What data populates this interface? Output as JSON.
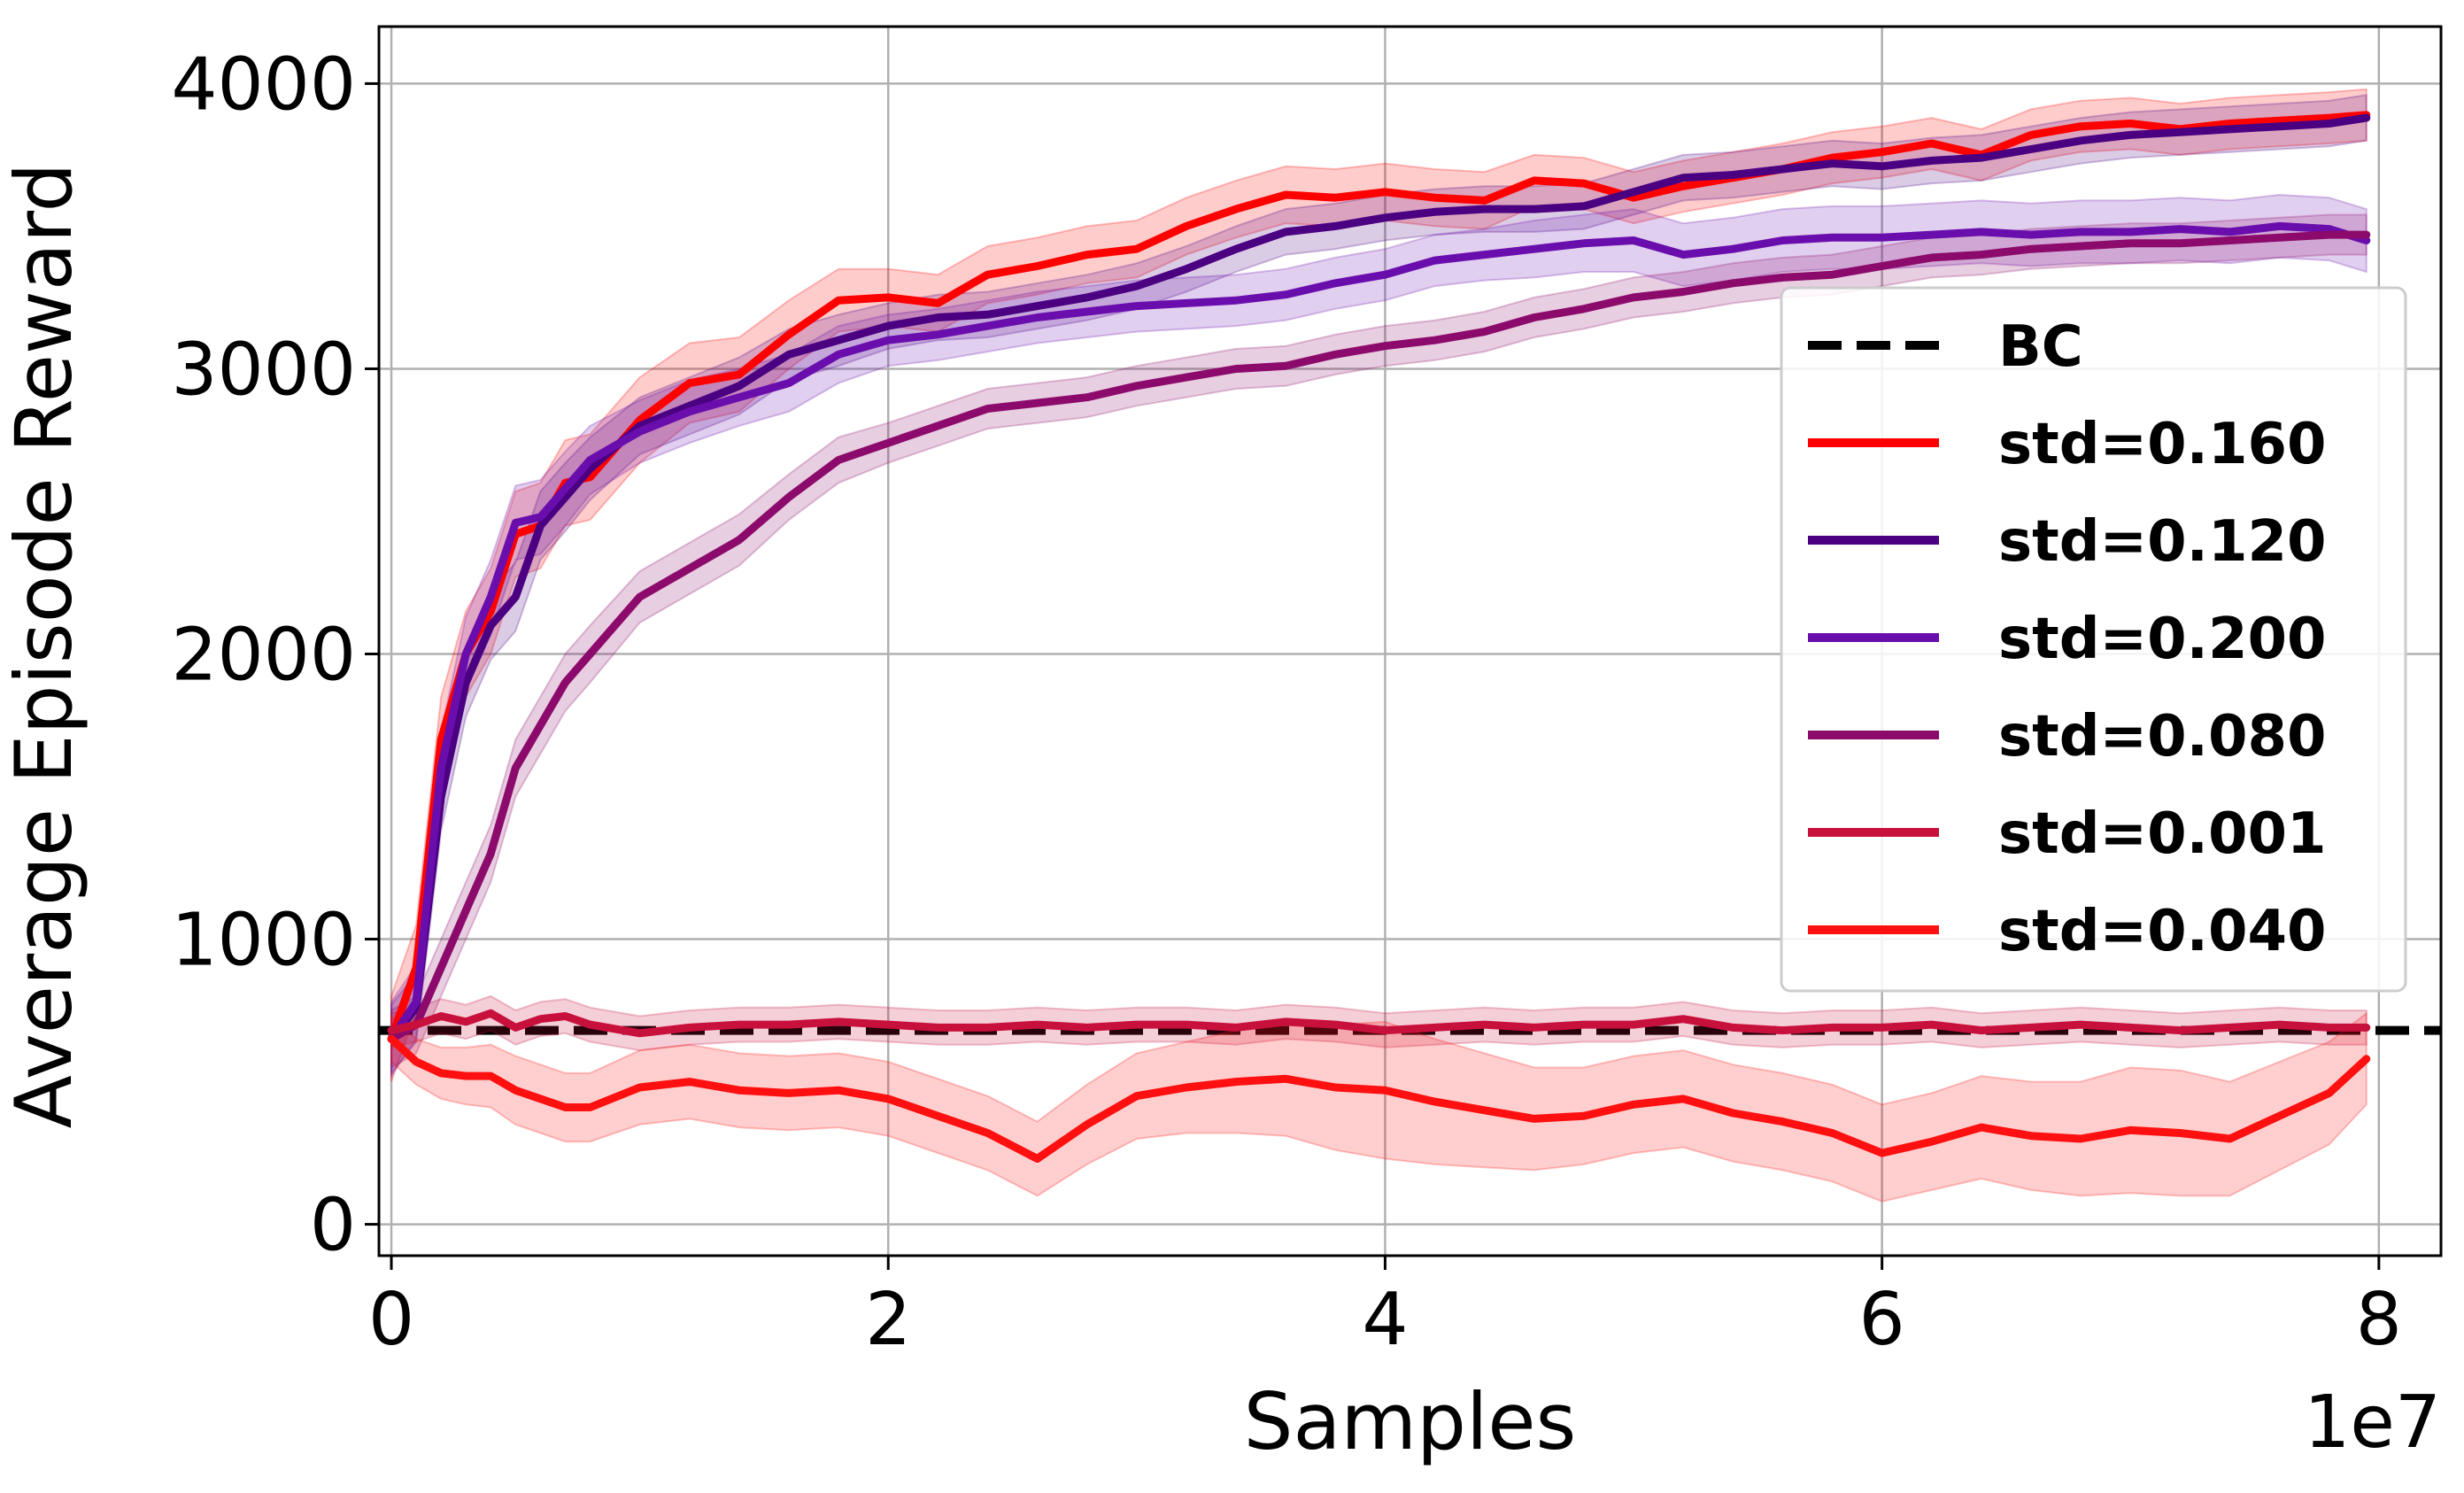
{
  "chart_data": {
    "type": "line",
    "title": "",
    "xlabel": "Samples",
    "ylabel": "Average Episode Reward",
    "x_offset_label": "1e7",
    "xlim": [
      -0.05,
      8.25
    ],
    "ylim": [
      -110,
      4200
    ],
    "xticks": [
      0,
      2,
      4,
      6,
      8
    ],
    "xtick_labels": [
      "0",
      "2",
      "4",
      "6",
      "8"
    ],
    "yticks": [
      0,
      1000,
      2000,
      3000,
      4000
    ],
    "ytick_labels": [
      "0",
      "1000",
      "2000",
      "3000",
      "4000"
    ],
    "grid": true,
    "legend_position": "center-right",
    "x": [
      0.0,
      0.1,
      0.2,
      0.3,
      0.4,
      0.5,
      0.6,
      0.7,
      0.8,
      1.0,
      1.2,
      1.4,
      1.6,
      1.8,
      2.0,
      2.2,
      2.4,
      2.6,
      2.8,
      3.0,
      3.2,
      3.4,
      3.6,
      3.8,
      4.0,
      4.2,
      4.4,
      4.6,
      4.8,
      5.0,
      5.2,
      5.4,
      5.6,
      5.8,
      6.0,
      6.2,
      6.4,
      6.6,
      6.8,
      7.0,
      7.2,
      7.4,
      7.6,
      7.8,
      7.95
    ],
    "baseline": {
      "name": "BC",
      "value": 680,
      "color": "#000000",
      "style": "dashed"
    },
    "series": [
      {
        "name": "std=0.160",
        "color": "#ff0000",
        "values": [
          650,
          900,
          1700,
          2000,
          2150,
          2420,
          2450,
          2600,
          2620,
          2820,
          2950,
          2980,
          3120,
          3240,
          3250,
          3230,
          3330,
          3360,
          3400,
          3420,
          3500,
          3560,
          3610,
          3600,
          3620,
          3600,
          3590,
          3660,
          3650,
          3600,
          3640,
          3670,
          3700,
          3740,
          3760,
          3790,
          3750,
          3820,
          3850,
          3860,
          3840,
          3860,
          3870,
          3880,
          3890
        ],
        "band": [
          150,
          150,
          150,
          150,
          150,
          150,
          150,
          150,
          150,
          150,
          140,
          130,
          120,
          110,
          100,
          100,
          100,
          100,
          100,
          100,
          100,
          100,
          100,
          100,
          100,
          100,
          100,
          90,
          90,
          90,
          90,
          90,
          90,
          90,
          90,
          90,
          90,
          90,
          90,
          90,
          90,
          90,
          90,
          90,
          90
        ]
      },
      {
        "name": "std=0.120",
        "color": "#4b0082",
        "values": [
          650,
          760,
          1500,
          1900,
          2100,
          2200,
          2450,
          2550,
          2650,
          2800,
          2870,
          2940,
          3050,
          3100,
          3150,
          3180,
          3190,
          3220,
          3250,
          3290,
          3350,
          3420,
          3480,
          3500,
          3530,
          3550,
          3560,
          3560,
          3570,
          3620,
          3670,
          3680,
          3700,
          3720,
          3710,
          3730,
          3740,
          3770,
          3800,
          3820,
          3830,
          3840,
          3850,
          3860,
          3880
        ],
        "band": [
          120,
          120,
          120,
          120,
          120,
          120,
          120,
          120,
          110,
          100,
          100,
          100,
          90,
          90,
          80,
          80,
          80,
          80,
          80,
          80,
          80,
          80,
          80,
          80,
          80,
          80,
          80,
          80,
          80,
          80,
          80,
          80,
          80,
          80,
          80,
          80,
          80,
          80,
          80,
          80,
          80,
          80,
          80,
          80,
          80
        ]
      },
      {
        "name": "std=0.200",
        "color": "#6a0dad",
        "values": [
          650,
          780,
          1600,
          2000,
          2200,
          2460,
          2480,
          2580,
          2680,
          2780,
          2850,
          2900,
          2950,
          3050,
          3100,
          3120,
          3150,
          3180,
          3200,
          3220,
          3230,
          3240,
          3260,
          3300,
          3330,
          3380,
          3400,
          3420,
          3440,
          3450,
          3400,
          3420,
          3450,
          3460,
          3460,
          3470,
          3480,
          3470,
          3480,
          3480,
          3490,
          3480,
          3500,
          3490,
          3450
        ],
        "band": [
          130,
          130,
          130,
          130,
          130,
          130,
          130,
          130,
          120,
          110,
          110,
          100,
          100,
          100,
          90,
          90,
          90,
          90,
          90,
          90,
          90,
          90,
          90,
          90,
          90,
          90,
          90,
          100,
          100,
          110,
          110,
          110,
          110,
          110,
          110,
          110,
          110,
          110,
          110,
          110,
          110,
          110,
          110,
          110,
          110
        ]
      },
      {
        "name": "std=0.080",
        "color": "#8b0a6b",
        "values": [
          650,
          700,
          900,
          1100,
          1300,
          1600,
          1750,
          1900,
          2000,
          2200,
          2300,
          2400,
          2550,
          2680,
          2740,
          2800,
          2860,
          2880,
          2900,
          2940,
          2970,
          3000,
          3010,
          3050,
          3080,
          3100,
          3130,
          3180,
          3210,
          3250,
          3270,
          3300,
          3320,
          3330,
          3360,
          3390,
          3400,
          3420,
          3430,
          3440,
          3440,
          3450,
          3460,
          3470,
          3470
        ],
        "band": [
          100,
          100,
          100,
          100,
          100,
          100,
          100,
          100,
          100,
          90,
          90,
          90,
          80,
          80,
          70,
          70,
          70,
          70,
          70,
          70,
          70,
          70,
          70,
          70,
          70,
          70,
          70,
          70,
          70,
          70,
          70,
          70,
          70,
          70,
          70,
          70,
          70,
          70,
          70,
          70,
          70,
          70,
          70,
          70,
          70
        ]
      },
      {
        "name": "std=0.001",
        "color": "#c8103c",
        "values": [
          680,
          700,
          730,
          710,
          740,
          690,
          720,
          730,
          700,
          670,
          690,
          700,
          700,
          710,
          700,
          690,
          690,
          700,
          690,
          700,
          700,
          690,
          710,
          700,
          680,
          690,
          700,
          690,
          700,
          700,
          720,
          690,
          680,
          690,
          690,
          700,
          680,
          690,
          700,
          690,
          680,
          690,
          700,
          690,
          690
        ],
        "band": [
          60,
          60,
          60,
          60,
          60,
          60,
          60,
          60,
          60,
          60,
          60,
          60,
          60,
          60,
          60,
          60,
          60,
          60,
          60,
          60,
          60,
          60,
          60,
          60,
          60,
          60,
          60,
          60,
          60,
          60,
          60,
          60,
          60,
          60,
          60,
          60,
          60,
          60,
          60,
          60,
          60,
          60,
          60,
          60,
          60
        ]
      },
      {
        "name": "std=0.040",
        "color": "#ff1010",
        "values": [
          650,
          570,
          530,
          520,
          520,
          470,
          440,
          410,
          410,
          480,
          500,
          470,
          460,
          470,
          440,
          380,
          320,
          230,
          350,
          450,
          480,
          500,
          510,
          480,
          470,
          430,
          400,
          370,
          380,
          420,
          440,
          390,
          360,
          320,
          250,
          290,
          340,
          310,
          300,
          330,
          320,
          300,
          380,
          460,
          580
        ],
        "band": [
          80,
          80,
          90,
          100,
          110,
          120,
          120,
          120,
          120,
          130,
          130,
          130,
          130,
          130,
          130,
          130,
          130,
          130,
          140,
          150,
          160,
          180,
          200,
          220,
          240,
          220,
          200,
          180,
          170,
          170,
          170,
          170,
          170,
          170,
          170,
          170,
          180,
          190,
          200,
          220,
          220,
          200,
          190,
          180,
          160
        ]
      }
    ]
  }
}
